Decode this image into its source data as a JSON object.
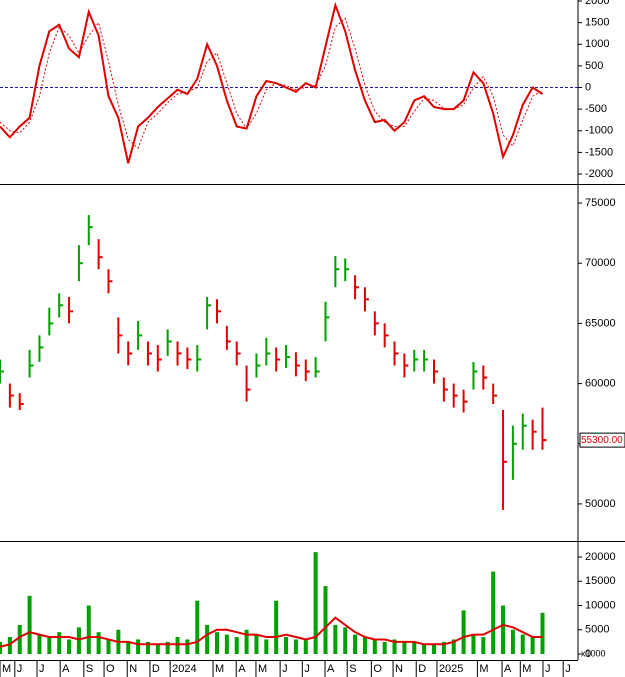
{
  "chart_data": [
    {
      "type": "line",
      "x": [
        0,
        2,
        4,
        6,
        8,
        10,
        12,
        14,
        16,
        18,
        20,
        22,
        24,
        26,
        28,
        30,
        32,
        34,
        36,
        38,
        40,
        42,
        44,
        46,
        48,
        50,
        52,
        54,
        56,
        58,
        60,
        62,
        64,
        66,
        68,
        70,
        72,
        74,
        76,
        78,
        80,
        82,
        84,
        86,
        88,
        90,
        92,
        94,
        96,
        98,
        100,
        102,
        104,
        106,
        108,
        110
      ],
      "xlim": [
        0,
        117.2
      ],
      "ylim": [
        -2207,
        2023
      ],
      "yticks": [
        -2000,
        -1500,
        -1000,
        -500,
        0,
        500,
        1000,
        1500,
        2000
      ],
      "reference_line": 0,
      "reference_color": "#1a1aa8",
      "series": [
        {
          "color": "#e00000",
          "style": "solid",
          "values": [
            -900,
            -1150,
            -900,
            -700,
            500,
            1300,
            1450,
            900,
            700,
            1750,
            1200,
            -200,
            -700,
            -1750,
            -900,
            -700,
            -450,
            -250,
            -50,
            -150,
            200,
            1000,
            500,
            -300,
            -900,
            -950,
            -200,
            150,
            100,
            0,
            -100,
            100,
            0,
            950,
            1900,
            1300,
            400,
            -300,
            -800,
            -750,
            -1000,
            -800,
            -300,
            -200,
            -450,
            -500,
            -500,
            -300,
            350,
            100,
            -600,
            -1600,
            -1100,
            -400,
            0,
            -150
          ]
        },
        {
          "color": "#e00000",
          "style": "dotted",
          "values": [
            -800,
            -1000,
            -1050,
            -800,
            -200,
            800,
            1400,
            1200,
            800,
            1200,
            1500,
            600,
            -400,
            -1200,
            -1400,
            -800,
            -600,
            -350,
            -150,
            -100,
            0,
            600,
            800,
            100,
            -600,
            -950,
            -600,
            -50,
            100,
            50,
            -50,
            0,
            50,
            500,
            1400,
            1600,
            900,
            50,
            -550,
            -800,
            -900,
            -900,
            -550,
            -250,
            -300,
            -480,
            -500,
            -400,
            0,
            250,
            -200,
            -1100,
            -1350,
            -750,
            -200,
            -80
          ]
        }
      ]
    },
    {
      "type": "stock",
      "x": [
        0,
        2,
        4,
        6,
        8,
        10,
        12,
        14,
        16,
        18,
        20,
        22,
        24,
        26,
        28,
        30,
        32,
        34,
        36,
        38,
        40,
        42,
        44,
        46,
        48,
        50,
        52,
        54,
        56,
        58,
        60,
        62,
        64,
        66,
        68,
        70,
        72,
        74,
        76,
        78,
        80,
        82,
        84,
        86,
        88,
        90,
        92,
        94,
        96,
        98,
        100,
        102,
        104,
        106,
        108,
        110
      ],
      "xlim": [
        0,
        117.2
      ],
      "ylim": [
        47000,
        76417
      ],
      "yticks": [
        50000,
        55000,
        60000,
        65000,
        70000,
        75000
      ],
      "up_color": "#00a000",
      "down_color": "#e00000",
      "high": [
        62000,
        60000,
        59200,
        62800,
        64000,
        66300,
        67500,
        67200,
        71500,
        74000,
        72000,
        69500,
        65500,
        63500,
        65200,
        63500,
        63200,
        64500,
        63500,
        63000,
        63200,
        67200,
        67000,
        64800,
        63500,
        61500,
        62500,
        63800,
        63000,
        63200,
        62600,
        62000,
        62200,
        66800,
        70600,
        70400,
        69000,
        68000,
        66000,
        65000,
        63500,
        62500,
        62800,
        62800,
        62000,
        60500,
        60000,
        59500,
        61800,
        61500,
        60000,
        57800,
        56500,
        57500,
        57000,
        58000
      ],
      "low": [
        60000,
        58000,
        57800,
        60500,
        61800,
        64000,
        65500,
        65000,
        68500,
        71500,
        69500,
        67500,
        62500,
        61500,
        62800,
        61500,
        61000,
        62300,
        61500,
        61200,
        61000,
        64500,
        65000,
        62800,
        61500,
        58500,
        60500,
        61500,
        61000,
        61300,
        60600,
        60200,
        60500,
        63500,
        68000,
        68500,
        67000,
        66000,
        64000,
        63000,
        61500,
        60500,
        61000,
        61000,
        60000,
        58500,
        58000,
        57600,
        59500,
        59500,
        58300,
        49500,
        52000,
        54500,
        54500,
        54500
      ],
      "close": [
        61000,
        59000,
        58300,
        61500,
        63000,
        65000,
        66500,
        66000,
        70000,
        73000,
        70500,
        68500,
        64000,
        62500,
        64000,
        62500,
        62000,
        63500,
        62500,
        62000,
        62000,
        66500,
        66000,
        63500,
        62500,
        59500,
        61500,
        62500,
        62000,
        62200,
        61500,
        61000,
        61000,
        65500,
        69500,
        69500,
        68000,
        67000,
        65000,
        64000,
        62500,
        61500,
        62000,
        62000,
        61000,
        59500,
        59000,
        58500,
        61000,
        60500,
        59000,
        53500,
        55000,
        56500,
        56000,
        55300
      ],
      "last_label": {
        "value": 55300,
        "label": "55300.00"
      }
    },
    {
      "type": "bar",
      "x": [
        0,
        2,
        4,
        6,
        8,
        10,
        12,
        14,
        16,
        18,
        20,
        22,
        24,
        26,
        28,
        30,
        32,
        34,
        36,
        38,
        40,
        42,
        44,
        46,
        48,
        50,
        52,
        54,
        56,
        58,
        60,
        62,
        64,
        66,
        68,
        70,
        72,
        74,
        76,
        78,
        80,
        82,
        84,
        86,
        88,
        90,
        92,
        94,
        96,
        98,
        100,
        102,
        104,
        106,
        108,
        110
      ],
      "xlim": [
        0,
        117.2
      ],
      "ylim": [
        -825,
        22887
      ],
      "yticks": [
        0,
        5000,
        10000,
        15000,
        20000
      ],
      "unit_label": "x1000",
      "color": "#00a000",
      "values": [
        2500,
        3500,
        6000,
        12000,
        4000,
        3500,
        4500,
        3000,
        5500,
        10000,
        4500,
        3000,
        5000,
        2500,
        3000,
        2500,
        2000,
        2500,
        3500,
        3000,
        11000,
        6000,
        4500,
        4000,
        3500,
        5000,
        4000,
        3000,
        11000,
        3500,
        3000,
        3000,
        21000,
        14000,
        6000,
        5500,
        4000,
        3500,
        3000,
        2500,
        3000,
        2500,
        2500,
        2000,
        2000,
        2500,
        3000,
        9000,
        4000,
        3500,
        17000,
        10000,
        5000,
        4000,
        3500,
        8500
      ],
      "ma": {
        "color": "#e00000",
        "values": [
          1500,
          2000,
          3500,
          4500,
          4000,
          3500,
          3500,
          3500,
          3000,
          3500,
          3500,
          3000,
          2500,
          2500,
          2000,
          2000,
          2000,
          2000,
          2000,
          2000,
          2500,
          4000,
          5000,
          5000,
          4500,
          4000,
          4000,
          3500,
          3500,
          4000,
          3500,
          3000,
          3500,
          5500,
          7500,
          6000,
          4500,
          3500,
          3000,
          3000,
          2500,
          2500,
          2500,
          2000,
          2000,
          2000,
          2500,
          3500,
          4000,
          4000,
          5000,
          6000,
          5500,
          4500,
          3500,
          3500
        ]
      },
      "xticks": [
        {
          "value": 0,
          "label": "M"
        },
        {
          "value": 3,
          "label": "J"
        },
        {
          "value": 7.5,
          "label": "J"
        },
        {
          "value": 12.2,
          "label": "A"
        },
        {
          "value": 17,
          "label": "S"
        },
        {
          "value": 21.1,
          "label": "O"
        },
        {
          "value": 25.8,
          "label": "N"
        },
        {
          "value": 30.4,
          "label": "D"
        },
        {
          "value": 34.5,
          "label": "2024"
        },
        {
          "value": 43.2,
          "label": "M"
        },
        {
          "value": 47.9,
          "label": "A"
        },
        {
          "value": 51.9,
          "label": "M"
        },
        {
          "value": 56.8,
          "label": "J"
        },
        {
          "value": 61.3,
          "label": "J"
        },
        {
          "value": 65.9,
          "label": "A"
        },
        {
          "value": 70.4,
          "label": "S"
        },
        {
          "value": 75.3,
          "label": "O"
        },
        {
          "value": 79.7,
          "label": "N"
        },
        {
          "value": 84.4,
          "label": "D"
        },
        {
          "value": 88.6,
          "label": "2025"
        },
        {
          "value": 96.8,
          "label": "M"
        },
        {
          "value": 101.8,
          "label": "A"
        },
        {
          "value": 105.5,
          "label": "M"
        },
        {
          "value": 110.1,
          "label": "J"
        },
        {
          "value": 114.2,
          "label": "J"
        }
      ]
    }
  ]
}
